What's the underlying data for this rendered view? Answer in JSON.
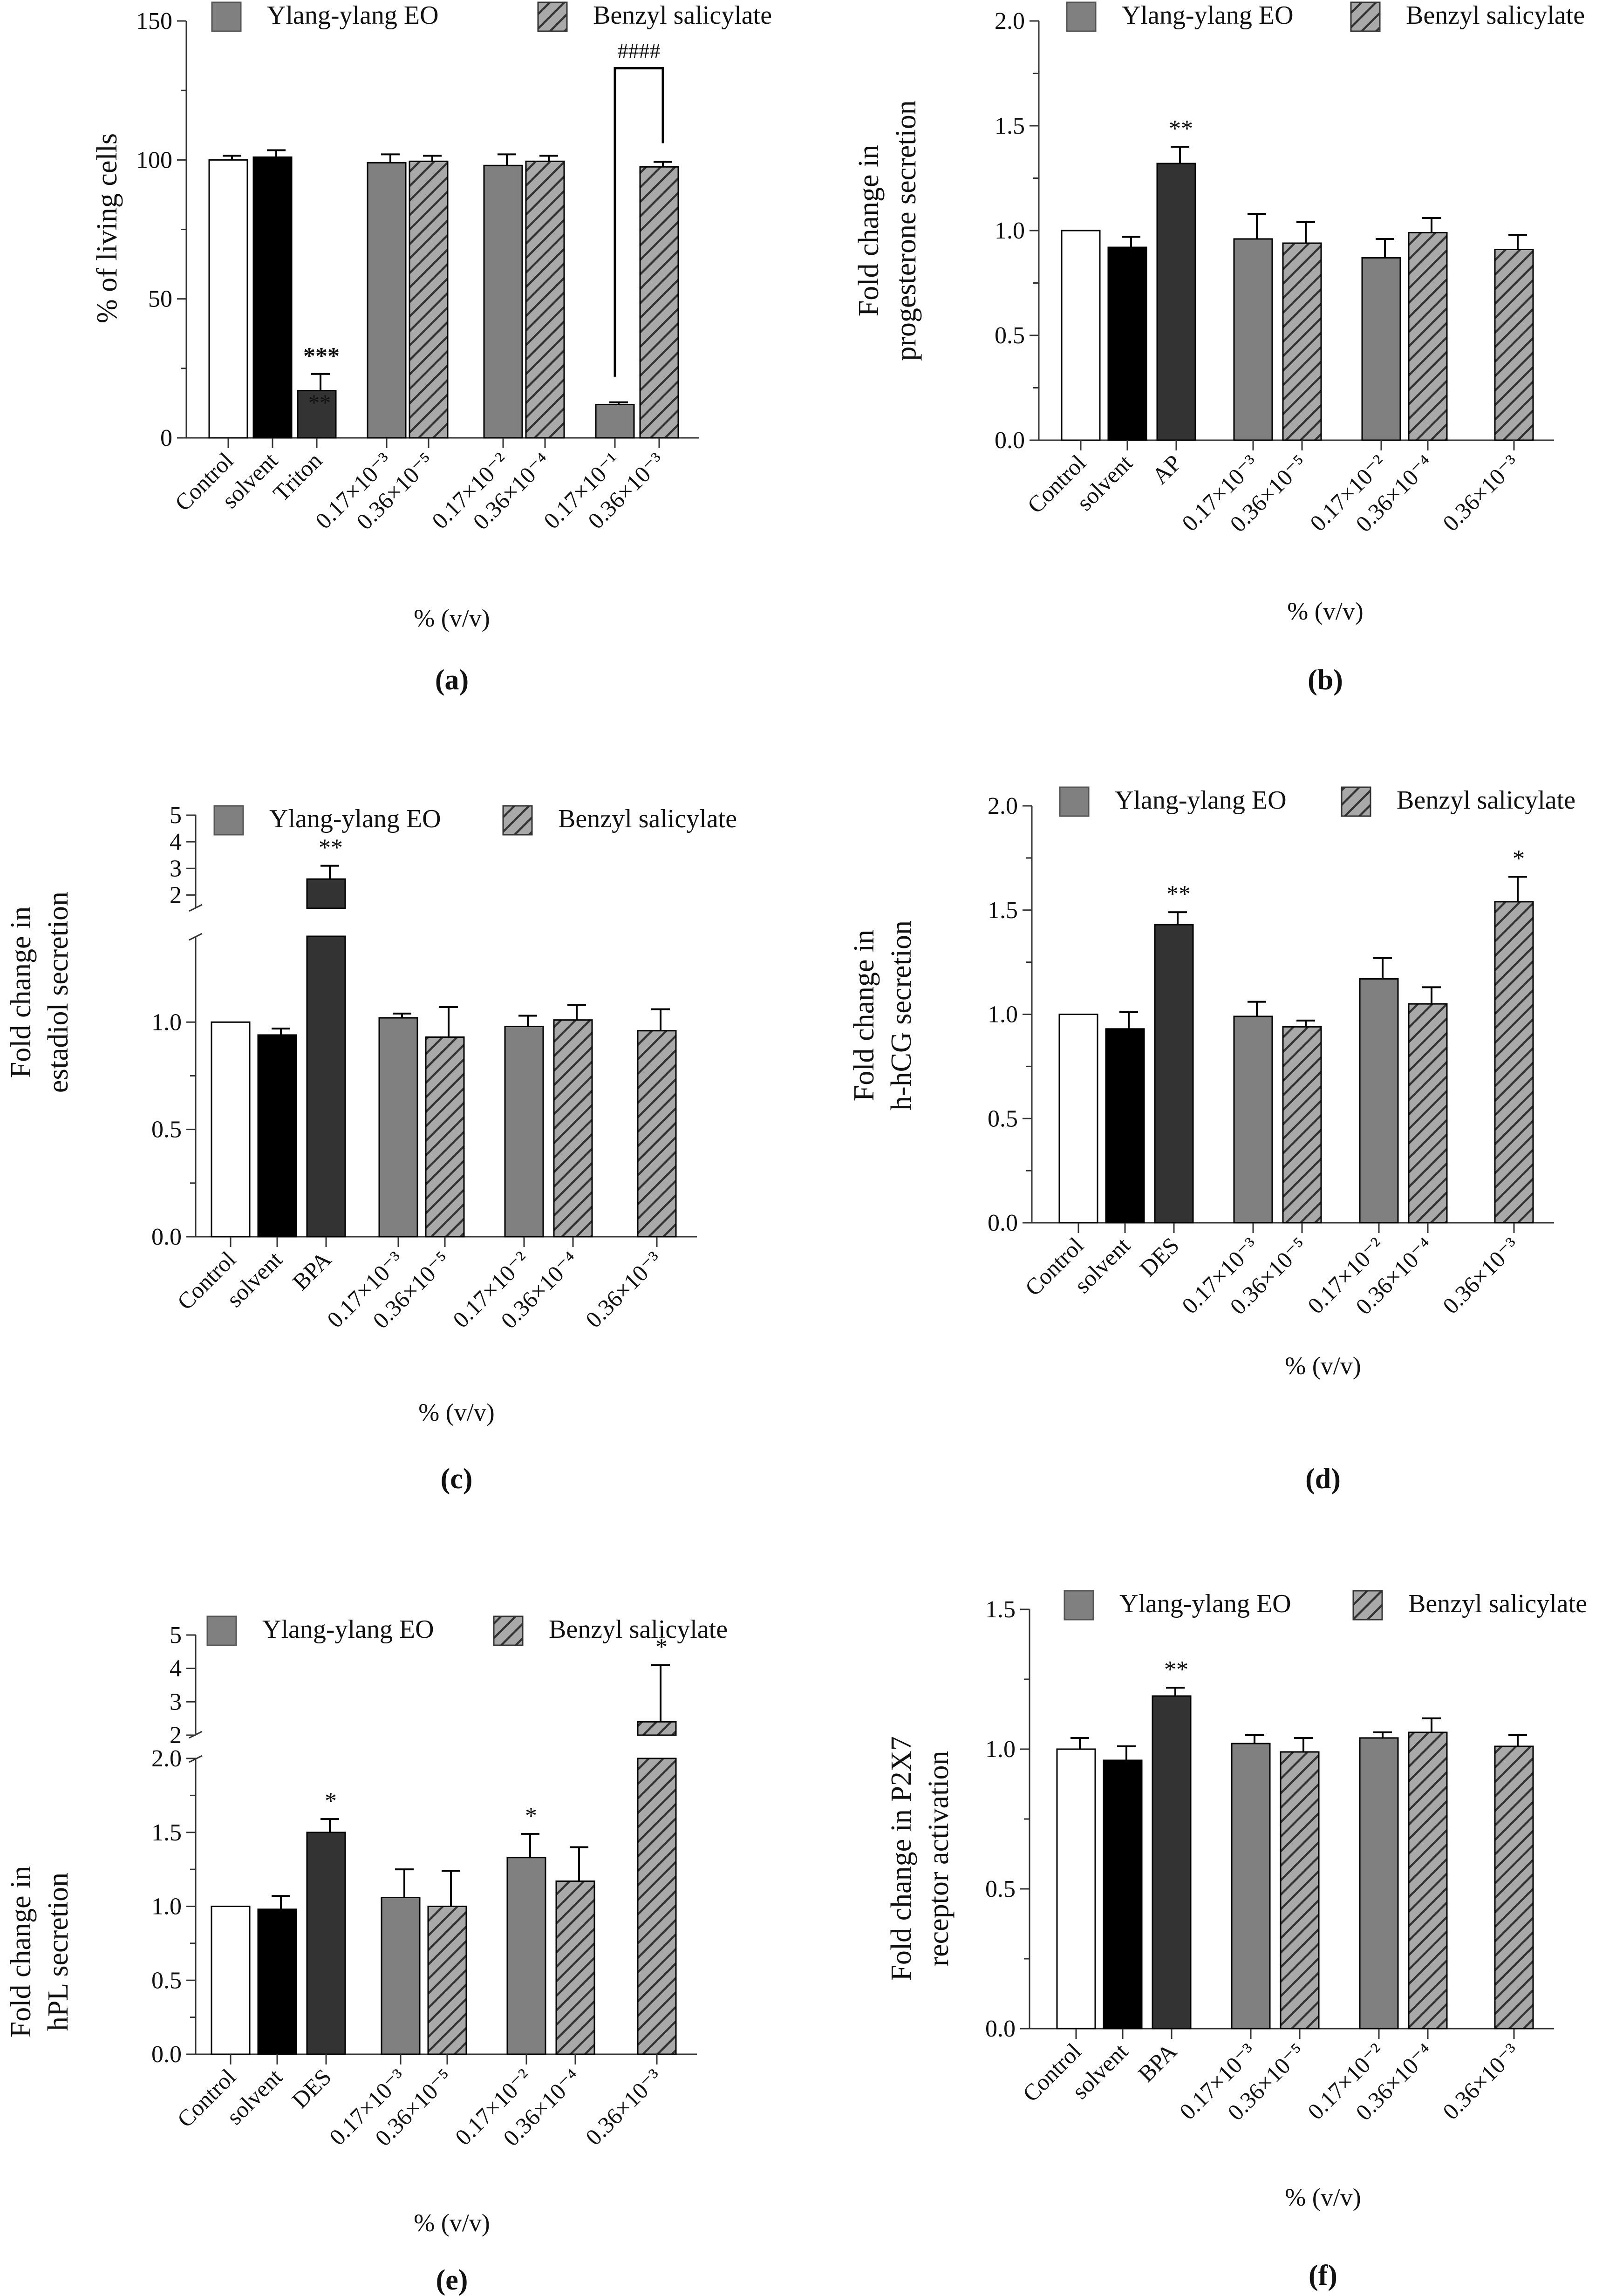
{
  "figure": {
    "legend_labels": [
      "Ylang-ylang EO",
      "Benzyl salicylate"
    ],
    "xlabel": "% (v/v)"
  },
  "colors": {
    "control": "#ffffff",
    "solvent": "#000000",
    "positive": "#333333",
    "ylang": "#808080",
    "benzyl": "#a9a9a9",
    "stroke": "#000000"
  },
  "chart_data": [
    {
      "panel_label": "(a)",
      "type": "bar",
      "ylabel": [
        "% of living cells"
      ],
      "ylim": [
        0,
        150
      ],
      "yticks": [
        "0",
        "50",
        "100",
        "150"
      ],
      "categories": [
        {
          "label": "Control",
          "value": 100,
          "error": 1.5,
          "kind": "control"
        },
        {
          "label": "solvent",
          "value": 101,
          "error": 2.5,
          "kind": "solvent"
        },
        {
          "label": "Triton",
          "value": 17,
          "error": 6,
          "kind": "positive",
          "sig": "***",
          "sig2": "**"
        },
        {
          "label": "0.17×10⁻³",
          "value": 99,
          "error": 3,
          "kind": "ylang"
        },
        {
          "label": "0.36×10⁻⁵",
          "value": 99.5,
          "error": 2,
          "kind": "benzyl"
        },
        {
          "label": "0.17×10⁻²",
          "value": 98,
          "error": 4,
          "kind": "ylang"
        },
        {
          "label": "0.36×10⁻⁴",
          "value": 99.5,
          "error": 2,
          "kind": "benzyl"
        },
        {
          "label": "0.17×10⁻¹",
          "value": 12,
          "error": 0.8,
          "kind": "ylang"
        },
        {
          "label": "0.36×10⁻³",
          "value": 97.5,
          "error": 1.8,
          "kind": "benzyl"
        }
      ],
      "bracket_annotation": "####"
    },
    {
      "panel_label": "(b)",
      "type": "bar",
      "ylabel": [
        "Fold change in",
        "progesterone secretion"
      ],
      "ylim": [
        0,
        2.0
      ],
      "yticks": [
        "0.0",
        "0.5",
        "1.0",
        "1.5",
        "2.0"
      ],
      "categories": [
        {
          "label": "Control",
          "value": 1.0,
          "error": 0,
          "kind": "control"
        },
        {
          "label": "solvent",
          "value": 0.92,
          "error": 0.05,
          "kind": "solvent"
        },
        {
          "label": "AP",
          "value": 1.32,
          "error": 0.08,
          "kind": "positive",
          "sig": "**"
        },
        {
          "label": "0.17×10⁻³",
          "value": 0.96,
          "error": 0.12,
          "kind": "ylang"
        },
        {
          "label": "0.36×10⁻⁵",
          "value": 0.94,
          "error": 0.1,
          "kind": "benzyl"
        },
        {
          "label": "0.17×10⁻²",
          "value": 0.87,
          "error": 0.09,
          "kind": "ylang"
        },
        {
          "label": "0.36×10⁻⁴",
          "value": 0.99,
          "error": 0.07,
          "kind": "benzyl"
        },
        {
          "label": "0.36×10⁻³",
          "value": 0.91,
          "error": 0.07,
          "kind": "benzyl"
        }
      ]
    },
    {
      "panel_label": "(c)",
      "type": "bar",
      "ylabel": [
        "Fold change in",
        "estadiol secretion"
      ],
      "ylim": [
        0,
        1.4
      ],
      "yticks": [
        "0.0",
        "0.5",
        "1.0"
      ],
      "upper_ylim": [
        1.5,
        5
      ],
      "upper_yticks": [
        "2",
        "3",
        "4",
        "5"
      ],
      "categories": [
        {
          "label": "Control",
          "value": 1.0,
          "error": 0,
          "kind": "control"
        },
        {
          "label": "solvent",
          "value": 0.94,
          "error": 0.03,
          "kind": "solvent"
        },
        {
          "label": "BPA",
          "value": 2.6,
          "error": 0.5,
          "kind": "positive",
          "sig": "**"
        },
        {
          "label": "0.17×10⁻³",
          "value": 1.02,
          "error": 0.02,
          "kind": "ylang"
        },
        {
          "label": "0.36×10⁻⁵",
          "value": 0.93,
          "error": 0.14,
          "kind": "benzyl"
        },
        {
          "label": "0.17×10⁻²",
          "value": 0.98,
          "error": 0.05,
          "kind": "ylang"
        },
        {
          "label": "0.36×10⁻⁴",
          "value": 1.01,
          "error": 0.07,
          "kind": "benzyl"
        },
        {
          "label": "0.36×10⁻³",
          "value": 0.96,
          "error": 0.1,
          "kind": "benzyl"
        }
      ]
    },
    {
      "panel_label": "(d)",
      "type": "bar",
      "ylabel": [
        "Fold change in",
        "h-hCG secretion"
      ],
      "ylim": [
        0,
        2.0
      ],
      "yticks": [
        "0.0",
        "0.5",
        "1.0",
        "1.5",
        "2.0"
      ],
      "categories": [
        {
          "label": "Control",
          "value": 1.0,
          "error": 0,
          "kind": "control"
        },
        {
          "label": "solvent",
          "value": 0.93,
          "error": 0.08,
          "kind": "solvent"
        },
        {
          "label": "DES",
          "value": 1.43,
          "error": 0.06,
          "kind": "positive",
          "sig": "**"
        },
        {
          "label": "0.17×10⁻³",
          "value": 0.99,
          "error": 0.07,
          "kind": "ylang"
        },
        {
          "label": "0.36×10⁻⁵",
          "value": 0.94,
          "error": 0.03,
          "kind": "benzyl"
        },
        {
          "label": "0.17×10⁻²",
          "value": 1.17,
          "error": 0.1,
          "kind": "ylang"
        },
        {
          "label": "0.36×10⁻⁴",
          "value": 1.05,
          "error": 0.08,
          "kind": "benzyl"
        },
        {
          "label": "0.36×10⁻³",
          "value": 1.54,
          "error": 0.12,
          "kind": "benzyl",
          "sig": "*"
        }
      ]
    },
    {
      "panel_label": "(e)",
      "type": "bar",
      "ylabel": [
        "Fold change in",
        "hPL secretion"
      ],
      "ylim": [
        0,
        2.0
      ],
      "yticks": [
        "0.0",
        "0.5",
        "1.0",
        "1.5",
        "2.0"
      ],
      "upper_ylim": [
        2,
        5
      ],
      "upper_yticks": [
        "2",
        "3",
        "4",
        "5"
      ],
      "categories": [
        {
          "label": "Control",
          "value": 1.0,
          "error": 0,
          "kind": "control"
        },
        {
          "label": "solvent",
          "value": 0.98,
          "error": 0.09,
          "kind": "solvent"
        },
        {
          "label": "DES",
          "value": 1.5,
          "error": 0.09,
          "kind": "positive",
          "sig": "*"
        },
        {
          "label": "0.17×10⁻³",
          "value": 1.06,
          "error": 0.19,
          "kind": "ylang"
        },
        {
          "label": "0.36×10⁻⁵",
          "value": 1.0,
          "error": 0.24,
          "kind": "benzyl"
        },
        {
          "label": "0.17×10⁻²",
          "value": 1.33,
          "error": 0.16,
          "kind": "ylang",
          "sig": "*"
        },
        {
          "label": "0.36×10⁻⁴",
          "value": 1.17,
          "error": 0.23,
          "kind": "benzyl"
        },
        {
          "label": "0.36×10⁻³",
          "value": 2.4,
          "error": 1.7,
          "kind": "benzyl",
          "sig": "*"
        }
      ]
    },
    {
      "panel_label": "(f)",
      "type": "bar",
      "ylabel": [
        "Fold change in P2X7",
        "receptor activation"
      ],
      "ylim": [
        0,
        1.5
      ],
      "yticks": [
        "0.0",
        "0.5",
        "1.0",
        "1.5"
      ],
      "categories": [
        {
          "label": "Control",
          "value": 1.0,
          "error": 0.04,
          "kind": "control"
        },
        {
          "label": "solvent",
          "value": 0.96,
          "error": 0.05,
          "kind": "solvent"
        },
        {
          "label": "BPA",
          "value": 1.19,
          "error": 0.03,
          "kind": "positive",
          "sig": "**"
        },
        {
          "label": "0.17×10⁻³",
          "value": 1.02,
          "error": 0.03,
          "kind": "ylang"
        },
        {
          "label": "0.36×10⁻⁵",
          "value": 0.99,
          "error": 0.05,
          "kind": "benzyl"
        },
        {
          "label": "0.17×10⁻²",
          "value": 1.04,
          "error": 0.02,
          "kind": "ylang"
        },
        {
          "label": "0.36×10⁻⁴",
          "value": 1.06,
          "error": 0.05,
          "kind": "benzyl"
        },
        {
          "label": "0.36×10⁻³",
          "value": 1.01,
          "error": 0.04,
          "kind": "benzyl"
        }
      ]
    }
  ]
}
